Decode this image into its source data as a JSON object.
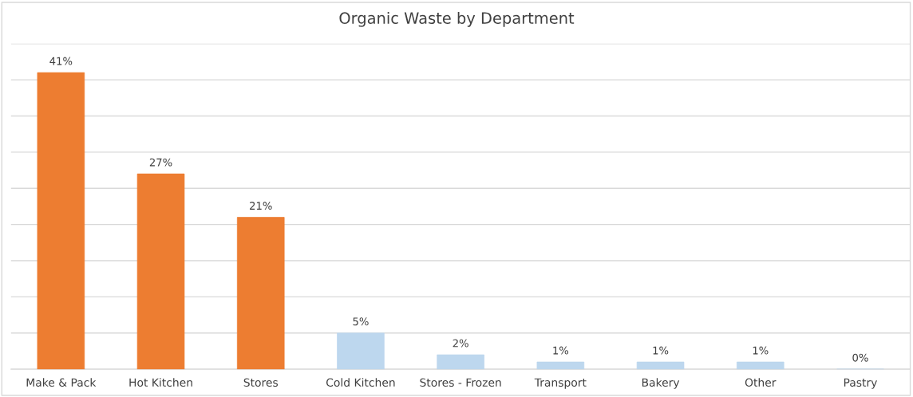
{
  "chart_data": {
    "type": "bar",
    "title": "Organic Waste by Department",
    "categories": [
      "Make & Pack",
      "Hot Kitchen",
      "Stores",
      "Cold Kitchen",
      "Stores - Frozen",
      "Transport",
      "Bakery",
      "Other",
      "Pastry"
    ],
    "values": [
      41,
      27,
      21,
      5,
      2,
      1,
      1,
      1,
      0
    ],
    "value_labels": [
      "41%",
      "27%",
      "21%",
      "5%",
      "2%",
      "1%",
      "1%",
      "1%",
      "0%"
    ],
    "colors": [
      "#ed7d31",
      "#ed7d31",
      "#ed7d31",
      "#bdd7ee",
      "#bdd7ee",
      "#bdd7ee",
      "#bdd7ee",
      "#bdd7ee",
      "#bdd7ee"
    ],
    "ylim": [
      0,
      45
    ],
    "yticks": [
      {
        "value": 0,
        "label": null
      },
      {
        "value": 5,
        "label": null
      },
      {
        "value": 10,
        "label": null
      },
      {
        "value": 15,
        "label": null
      },
      {
        "value": 20,
        "label": null
      },
      {
        "value": 25,
        "label": null
      },
      {
        "value": 30,
        "label": null
      },
      {
        "value": 35,
        "label": null
      },
      {
        "value": 40,
        "label": null
      },
      {
        "value": 45,
        "label": null
      }
    ],
    "tick_labels": "x",
    "grid": "y",
    "legend": false
  }
}
